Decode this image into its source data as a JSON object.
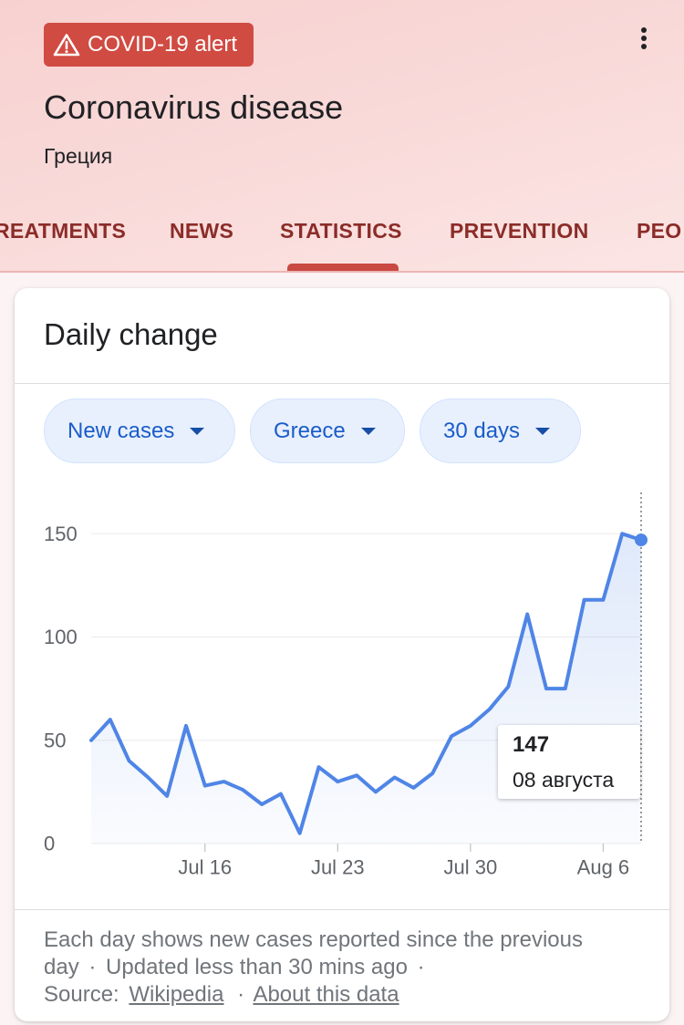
{
  "header": {
    "alert_label": "COVID-19 alert",
    "alert_icon": "warning-icon",
    "menu_icon": "more-vert-icon",
    "title": "Coronavirus disease",
    "subtitle": "Греция"
  },
  "tabs": [
    {
      "label": "REATMENTS",
      "active": false
    },
    {
      "label": "NEWS",
      "active": false
    },
    {
      "label": "STATISTICS",
      "active": true
    },
    {
      "label": "PREVENTION",
      "active": false
    },
    {
      "label": "PEO",
      "active": false
    }
  ],
  "filters": [
    {
      "label": "New cases",
      "icon": "dropdown-arrow-icon"
    },
    {
      "label": "Greece",
      "icon": "dropdown-arrow-icon"
    },
    {
      "label": "30 days",
      "icon": "dropdown-arrow-icon"
    }
  ],
  "tooltip": {
    "value": "147",
    "date": "08 августа"
  },
  "footer": {
    "description": "Each day shows new cases reported since the previous day",
    "separator": "·",
    "updated": "Updated less than 30 mins ago",
    "source_label": "Source:",
    "source_link": "Wikipedia",
    "about_link": "About this data"
  },
  "colors": {
    "alert_background": "#d04b42",
    "tab_text": "#8b2c28",
    "tab_indicator": "#c84a42",
    "chip_background": "#e8f0fe",
    "chip_text": "#1a5cc9",
    "series_line": "#4f85e6",
    "axis_text": "#5f6368"
  },
  "chart_data": {
    "type": "line",
    "title": "Daily change",
    "x": [
      "Jul 10",
      "Jul 11",
      "Jul 12",
      "Jul 13",
      "Jul 14",
      "Jul 15",
      "Jul 16",
      "Jul 17",
      "Jul 18",
      "Jul 19",
      "Jul 20",
      "Jul 21",
      "Jul 22",
      "Jul 23",
      "Jul 24",
      "Jul 25",
      "Jul 26",
      "Jul 27",
      "Jul 28",
      "Jul 29",
      "Jul 30",
      "Jul 31",
      "Aug 1",
      "Aug 2",
      "Aug 3",
      "Aug 4",
      "Aug 5",
      "Aug 6",
      "Aug 7",
      "Aug 8"
    ],
    "series": [
      {
        "values": [
          50,
          60,
          40,
          32,
          23,
          57,
          28,
          30,
          26,
          19,
          24,
          5,
          37,
          30,
          33,
          25,
          32,
          27,
          34,
          52,
          57,
          65,
          76,
          111,
          75,
          75,
          118,
          118,
          150,
          147
        ]
      }
    ],
    "x_tick_labels": [
      "Jul 16",
      "Jul 23",
      "Jul 30",
      "Aug 6"
    ],
    "yticks": [
      0,
      50,
      100,
      150
    ],
    "ylim": [
      0,
      170
    ],
    "grid": true,
    "area_fill": true,
    "selected_x": "Aug 8"
  }
}
